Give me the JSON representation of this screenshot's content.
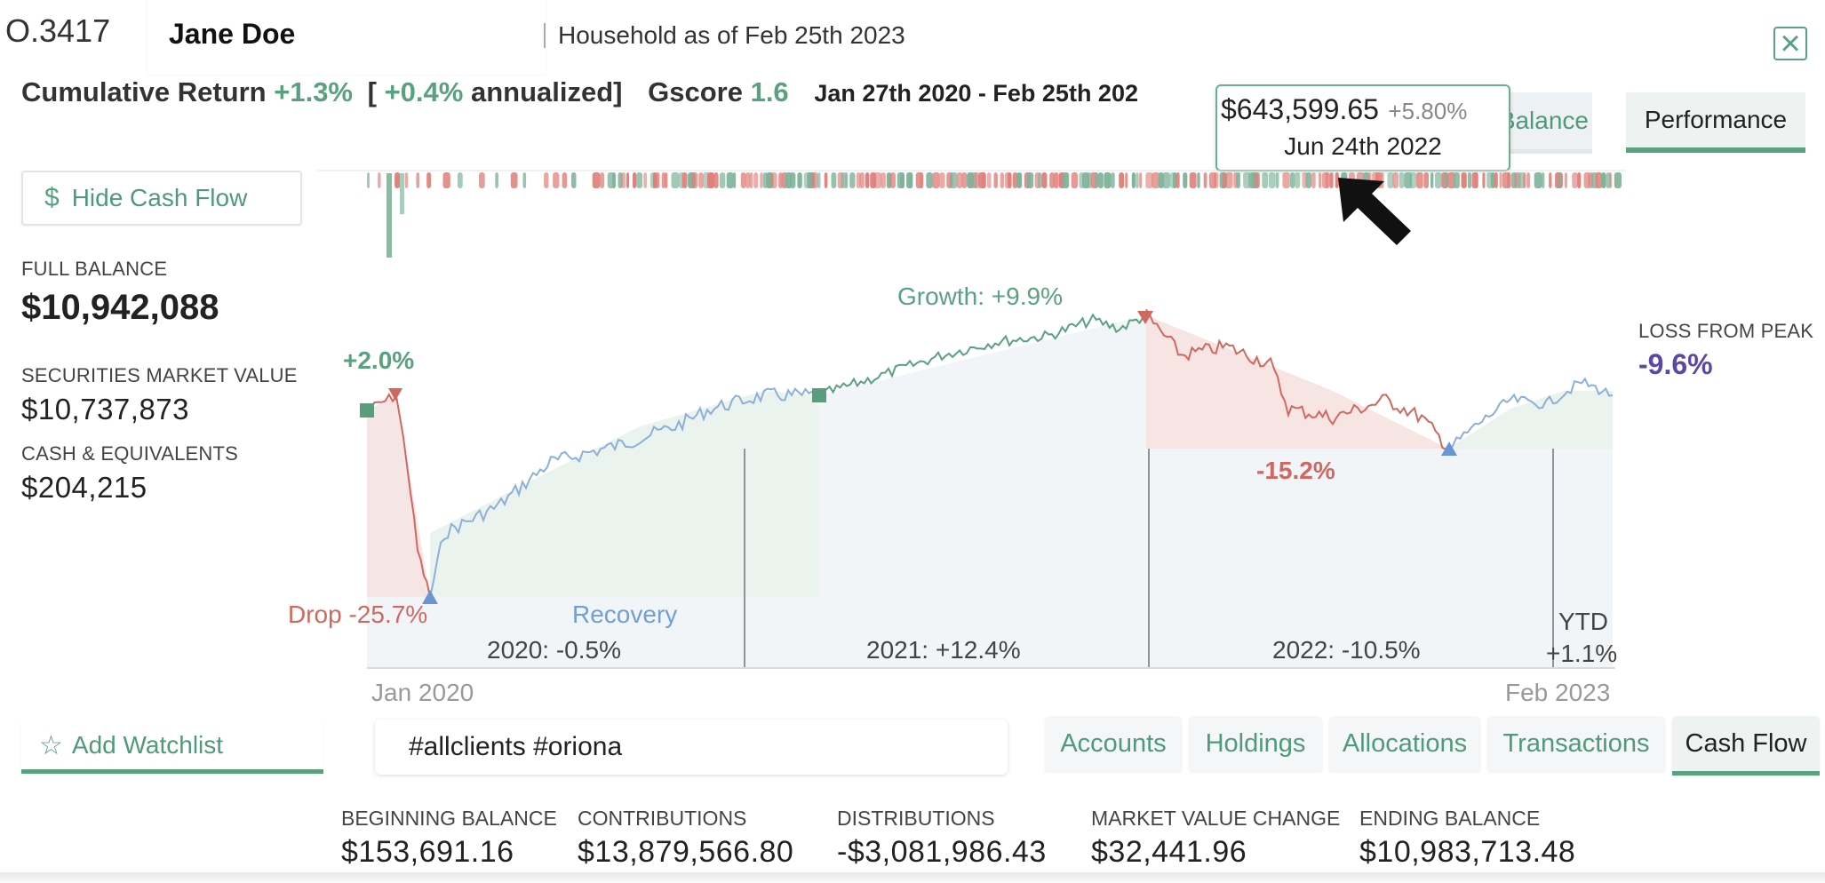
{
  "header": {
    "account_id": "O.3417",
    "client_name": "Jane Doe",
    "household_title": "Household as of Feb 25th 2023",
    "close_label": "×"
  },
  "summary_line": {
    "cumulative_label": "Cumulative Return",
    "cumulative_value": "+1.3%",
    "bracket_open": "[",
    "annualized_value": "+0.4%",
    "annualized_label": "annualized]",
    "gscore_label": "Gscore",
    "gscore_value": "1.6",
    "date_range": "Jan 27th 2020 - Feb 25th 202"
  },
  "view_tabs": [
    {
      "label": "Balance",
      "active": false
    },
    {
      "label": "Performance",
      "active": true
    }
  ],
  "tooltip": {
    "amount": "$643,599.65",
    "change": "+5.80%",
    "date": "Jun 24th 2022"
  },
  "left_panel": {
    "hide_cash_flow_label": "Hide Cash Flow",
    "full_balance_label": "FULL BALANCE",
    "full_balance_value": "$10,942,088",
    "securities_label": "SECURITIES MARKET VALUE",
    "securities_value": "$10,737,873",
    "cash_label": "CASH & EQUIVALENTS",
    "cash_value": "$204,215"
  },
  "right_panel": {
    "loss_label": "LOSS FROM PEAK",
    "loss_value": "-9.6%"
  },
  "chart_data": {
    "type": "line",
    "x_start_label": "Jan 2020",
    "x_end_label": "Feb 2023",
    "annotations": {
      "start": "+2.0%",
      "drop": "Drop -25.7%",
      "recovery": "Recovery",
      "growth": "Growth: +9.9%",
      "decline": "-15.2%"
    },
    "years": [
      {
        "label": "2020: -0.5%"
      },
      {
        "label": "2021: +12.4%"
      },
      {
        "label": "2022: -10.5%"
      },
      {
        "label": "YTD",
        "value": "+1.1%"
      }
    ],
    "colors": {
      "up": "#5aa17f",
      "down": "#d1685f",
      "recovery": "#7aa6d6"
    }
  },
  "bottom_bar": {
    "add_watchlist_label": "Add Watchlist",
    "tags_value": "#allclients #oriona",
    "tabs": [
      {
        "label": "Accounts",
        "active": false
      },
      {
        "label": "Holdings",
        "active": false
      },
      {
        "label": "Allocations",
        "active": false
      },
      {
        "label": "Transactions",
        "active": false
      },
      {
        "label": "Cash Flow",
        "active": true
      }
    ]
  },
  "cash_flow_summary": [
    {
      "label": "BEGINNING BALANCE",
      "value": "$153,691.16"
    },
    {
      "label": "CONTRIBUTIONS",
      "value": "$13,879,566.80"
    },
    {
      "label": "DISTRIBUTIONS",
      "value": "-$3,081,986.43"
    },
    {
      "label": "MARKET VALUE CHANGE",
      "value": "$32,441.96"
    },
    {
      "label": "ENDING BALANCE",
      "value": "$10,983,713.48"
    }
  ]
}
